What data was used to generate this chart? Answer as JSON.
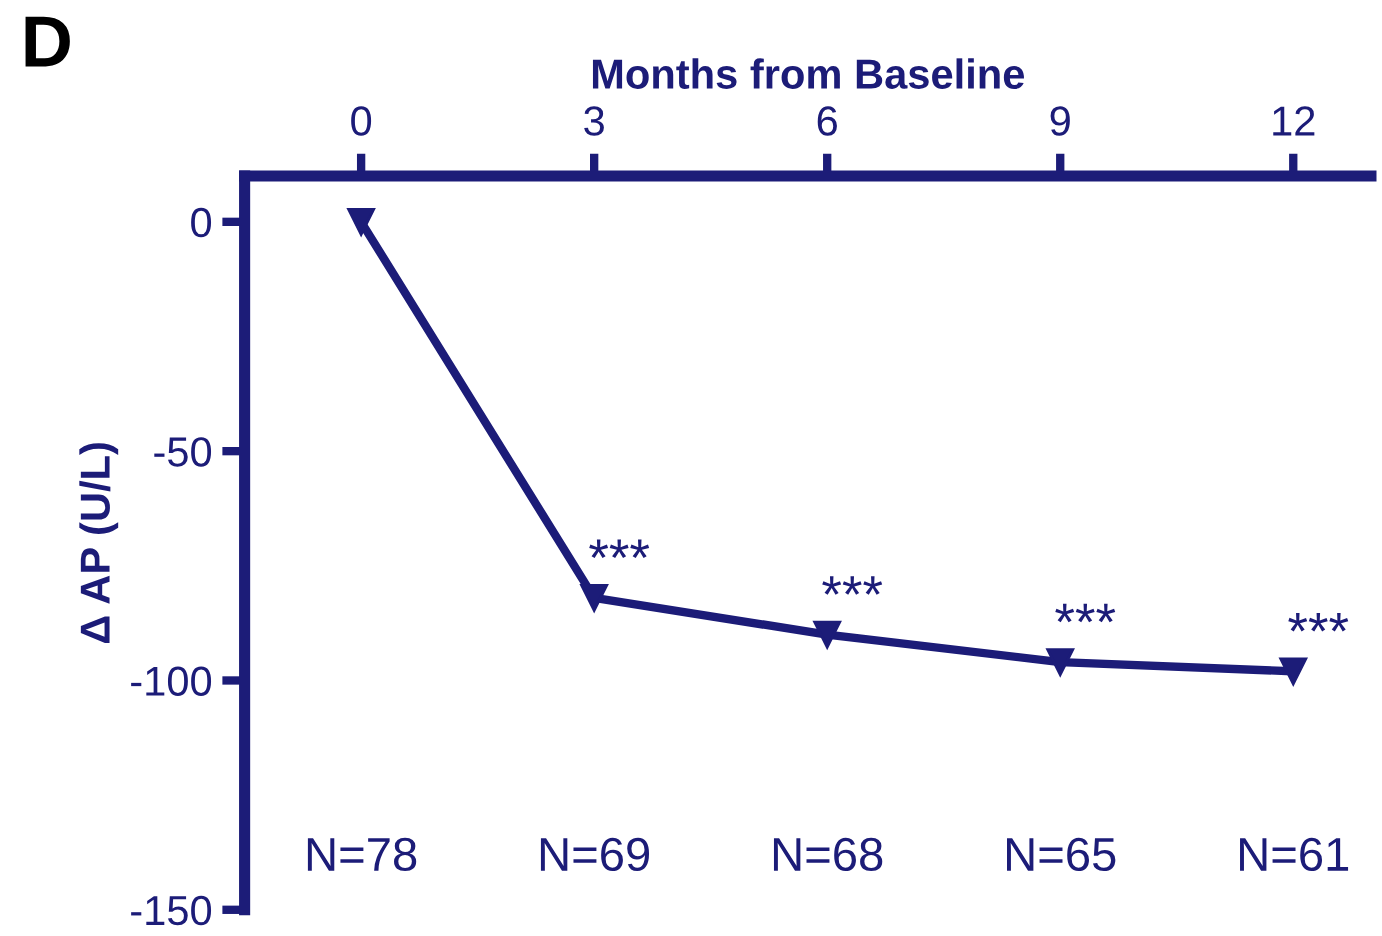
{
  "chart_data": {
    "type": "line",
    "xlabel": "Months from Baseline",
    "ylabel": "Δ AP (U/L)",
    "x": [
      0,
      3,
      6,
      9,
      12
    ],
    "series": [
      {
        "color": "#1c1c78",
        "values": [
          0,
          -82,
          -90,
          -96,
          -98
        ]
      }
    ],
    "xlim": [
      -1.5,
      13
    ],
    "xticks": [
      0,
      3,
      6,
      9,
      12
    ],
    "ylim": [
      -150,
      10
    ],
    "yticks": [
      0,
      -50,
      -100,
      -150
    ],
    "marker": "triangle",
    "line_style": "solid",
    "grid": false,
    "legend": false,
    "annotations": [
      "D",
      {
        "text": "***",
        "x": 3,
        "y": -82
      },
      {
        "text": "***",
        "x": 6,
        "y": -90
      },
      {
        "text": "***",
        "x": 9,
        "y": -96
      },
      {
        "text": "***",
        "x": 12,
        "y": -98
      },
      "N=78",
      "N=69",
      "N=68",
      "N=65",
      "N=61"
    ]
  }
}
